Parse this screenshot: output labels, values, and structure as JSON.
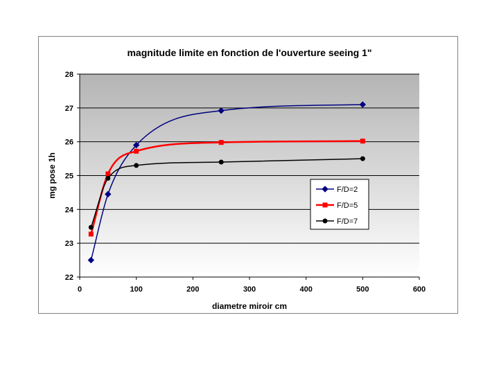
{
  "chart_data": {
    "type": "line",
    "title": "magnitude limite en fonction de l'ouverture seeing 1\"",
    "xlabel": "diametre miroir cm",
    "ylabel": "mg pose 1h",
    "xlim": [
      0,
      600
    ],
    "ylim": [
      22,
      28
    ],
    "xticks": [
      0,
      100,
      200,
      300,
      400,
      500,
      600
    ],
    "yticks": [
      22,
      23,
      24,
      25,
      26,
      27,
      28
    ],
    "grid": "horizontal",
    "plot_background": "gradient grey to white",
    "legend_position": "right-middle",
    "series": [
      {
        "name": "F/D=2",
        "color": "#000080",
        "marker": "diamond",
        "x": [
          20,
          50,
          100,
          250,
          500
        ],
        "y": [
          22.5,
          24.45,
          25.9,
          26.92,
          27.1
        ]
      },
      {
        "name": "F/D=5",
        "color": "#ff0000",
        "marker": "square",
        "x": [
          20,
          50,
          100,
          250,
          500
        ],
        "y": [
          23.27,
          25.05,
          25.72,
          25.98,
          26.02
        ]
      },
      {
        "name": "F/D=7",
        "color": "#000000",
        "marker": "circle",
        "x": [
          20,
          50,
          100,
          250,
          500
        ],
        "y": [
          23.47,
          24.92,
          25.3,
          25.4,
          25.5
        ]
      }
    ]
  }
}
